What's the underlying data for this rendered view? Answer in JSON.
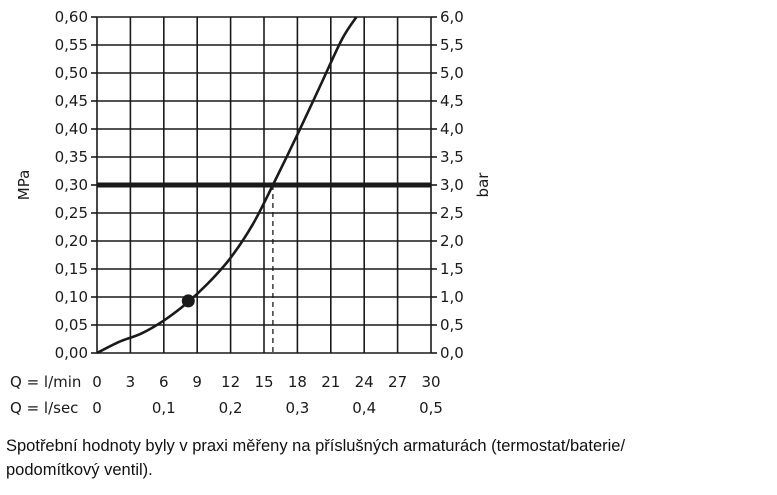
{
  "chart_data": {
    "type": "line",
    "left_axis": {
      "label": "MPa",
      "min": 0,
      "max": 0.6,
      "ticks": [
        "0,00",
        "0,05",
        "0,10",
        "0,15",
        "0,20",
        "0,25",
        "0,30",
        "0,35",
        "0,40",
        "0,45",
        "0,50",
        "0,55",
        "0,60"
      ]
    },
    "right_axis": {
      "label": "bar",
      "min": 0,
      "max": 6,
      "ticks": [
        "0,0",
        "0,5",
        "1,0",
        "1,5",
        "2,0",
        "2,5",
        "3,0",
        "3,5",
        "4,0",
        "4,5",
        "5,0",
        "5,5",
        "6,0"
      ]
    },
    "x_axis_lmin": {
      "label": "Q = l/min",
      "min": 0,
      "max": 30,
      "ticks": [
        "0",
        "3",
        "6",
        "9",
        "12",
        "15",
        "18",
        "21",
        "24",
        "27",
        "30"
      ]
    },
    "x_axis_lsec": {
      "label": "Q = l/sec",
      "ticks": [
        {
          "value": 0,
          "label": "0"
        },
        {
          "value": 0.1,
          "label": "0,1"
        },
        {
          "value": 0.2,
          "label": "0,2"
        },
        {
          "value": 0.3,
          "label": "0,3"
        },
        {
          "value": 0.4,
          "label": "0,4"
        },
        {
          "value": 0.5,
          "label": "0,5"
        }
      ]
    },
    "grid": true,
    "series": [
      {
        "x": [
          0,
          2,
          4,
          6,
          8,
          10,
          12,
          14,
          15.8,
          18,
          20,
          22,
          23.3
        ],
        "y": [
          0,
          0.02,
          0.035,
          0.058,
          0.088,
          0.125,
          0.17,
          0.23,
          0.3,
          0.39,
          0.475,
          0.56,
          0.6
        ],
        "color": "#1a1a1a"
      }
    ],
    "reference_line": {
      "y": 0.3,
      "color": "#1a1a1a"
    },
    "marker": {
      "x": 8.2,
      "y": 0.093
    },
    "intersection": {
      "x": 15.8,
      "y": 0.3
    }
  },
  "caption": {
    "line1": "Spotřební hodnoty byly v praxi měřeny na příslušných armaturách (termostat/baterie/",
    "line2": "podomítkový ventil)."
  }
}
